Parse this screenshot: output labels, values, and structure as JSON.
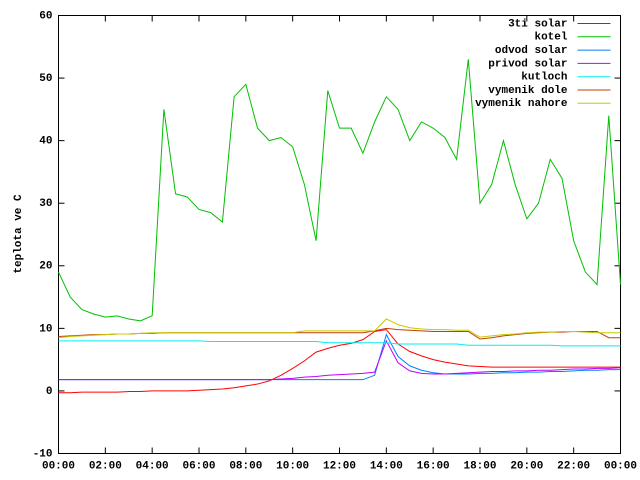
{
  "chart_data": {
    "type": "line",
    "ylabel": "teplota ve C",
    "x": [
      0,
      0.5,
      1,
      1.5,
      2,
      2.5,
      3,
      3.5,
      4,
      4.5,
      5,
      5.5,
      6,
      6.5,
      7,
      7.5,
      8,
      8.5,
      9,
      9.5,
      10,
      10.5,
      11,
      11.5,
      12,
      12.5,
      13,
      13.5,
      14,
      14.5,
      15,
      15.5,
      16,
      16.5,
      17,
      17.5,
      18,
      18.5,
      19,
      19.5,
      20,
      20.5,
      21,
      21.5,
      22,
      22.5,
      23,
      23.5,
      24
    ],
    "xlim": [
      0,
      24
    ],
    "xticks": [
      {
        "value": 0,
        "label": "00:00"
      },
      {
        "value": 2,
        "label": "02:00"
      },
      {
        "value": 4,
        "label": "04:00"
      },
      {
        "value": 6,
        "label": "06:00"
      },
      {
        "value": 8,
        "label": "08:00"
      },
      {
        "value": 10,
        "label": "10:00"
      },
      {
        "value": 12,
        "label": "12:00"
      },
      {
        "value": 14,
        "label": "14:00"
      },
      {
        "value": 16,
        "label": "16:00"
      },
      {
        "value": 18,
        "label": "18:00"
      },
      {
        "value": 20,
        "label": "20:00"
      },
      {
        "value": 22,
        "label": "22:00"
      },
      {
        "value": 24,
        "label": "00:00"
      }
    ],
    "ylim": [
      -10,
      60
    ],
    "yticks": [
      -10,
      0,
      10,
      20,
      30,
      40,
      50,
      60
    ],
    "grid": false,
    "legend": "top right",
    "series": [
      {
        "name": "3ti solar",
        "color": "#ff0000",
        "values": [
          -0.3,
          -0.3,
          -0.2,
          -0.2,
          -0.2,
          -0.2,
          -0.1,
          -0.1,
          0,
          0,
          0,
          0,
          0.1,
          0.2,
          0.3,
          0.5,
          0.8,
          1.1,
          1.6,
          2.5,
          3.6,
          4.8,
          6.2,
          6.8,
          7.3,
          7.6,
          8.2,
          9.5,
          9.8,
          7.5,
          6.3,
          5.6,
          5,
          4.6,
          4.3,
          4,
          3.9,
          3.8,
          3.8,
          3.8,
          3.8,
          3.8,
          3.8,
          3.8,
          3.8,
          3.8,
          3.8,
          3.8,
          3.8
        ]
      },
      {
        "name": "kotel",
        "color": "#00c000",
        "values": [
          19,
          15,
          13,
          12.3,
          11.8,
          12,
          11.5,
          11.2,
          12,
          45,
          31.5,
          31,
          29,
          28.5,
          27,
          47,
          49,
          42,
          40,
          40.5,
          39,
          33,
          24,
          48,
          42,
          42,
          38,
          43,
          47,
          45,
          40,
          43,
          42,
          40.5,
          37,
          53,
          30,
          33,
          40,
          33,
          27.5,
          30,
          37,
          34,
          24,
          19,
          17,
          44,
          17
        ]
      },
      {
        "name": "odvod solar",
        "color": "#0080ff",
        "values": [
          1.8,
          1.8,
          1.8,
          1.8,
          1.8,
          1.8,
          1.8,
          1.8,
          1.8,
          1.8,
          1.8,
          1.8,
          1.8,
          1.8,
          1.8,
          1.8,
          1.8,
          1.8,
          1.8,
          1.8,
          1.8,
          1.8,
          1.8,
          1.8,
          1.8,
          1.8,
          1.8,
          2.5,
          9,
          5.5,
          4,
          3.3,
          2.9,
          2.7,
          2.7,
          2.7,
          2.8,
          2.8,
          2.9,
          2.9,
          3,
          3,
          3.1,
          3.1,
          3.2,
          3.3,
          3.3,
          3.4,
          3.4
        ]
      },
      {
        "name": "privod solar",
        "color": "#c000ff",
        "values": [
          1.8,
          1.8,
          1.8,
          1.8,
          1.8,
          1.8,
          1.8,
          1.8,
          1.8,
          1.8,
          1.8,
          1.8,
          1.8,
          1.8,
          1.8,
          1.8,
          1.8,
          1.8,
          1.8,
          1.9,
          2,
          2.2,
          2.3,
          2.5,
          2.6,
          2.7,
          2.8,
          3,
          8,
          4.5,
          3.2,
          2.8,
          2.7,
          2.7,
          2.8,
          2.9,
          3,
          3.1,
          3.1,
          3.2,
          3.2,
          3.3,
          3.3,
          3.4,
          3.5,
          3.5,
          3.6,
          3.6,
          3.7
        ]
      },
      {
        "name": "kutloch",
        "color": "#00eeee",
        "values": [
          8,
          8,
          8,
          8,
          8,
          8,
          8,
          8,
          8,
          8,
          8,
          8,
          8,
          7.9,
          7.9,
          7.9,
          7.9,
          7.9,
          7.9,
          7.9,
          7.9,
          7.9,
          7.9,
          7.7,
          7.7,
          7.7,
          7.7,
          7.7,
          7.7,
          7.5,
          7.5,
          7.5,
          7.5,
          7.5,
          7.5,
          7.3,
          7.3,
          7.3,
          7.3,
          7.3,
          7.3,
          7.3,
          7.3,
          7.2,
          7.2,
          7.2,
          7.2,
          7.2,
          7.2
        ]
      },
      {
        "name": "vymenik dole",
        "color": "#c04000",
        "values": [
          8.7,
          8.8,
          8.9,
          9,
          9,
          9.1,
          9.1,
          9.2,
          9.2,
          9.3,
          9.3,
          9.3,
          9.3,
          9.3,
          9.3,
          9.3,
          9.3,
          9.3,
          9.3,
          9.3,
          9.3,
          9.3,
          9.3,
          9.3,
          9.3,
          9.3,
          9.3,
          9.6,
          10,
          9.8,
          9.7,
          9.6,
          9.5,
          9.5,
          9.5,
          9.5,
          8.3,
          8.5,
          8.8,
          9,
          9.2,
          9.3,
          9.4,
          9.4,
          9.5,
          9.5,
          9.5,
          8.5,
          8.5
        ]
      },
      {
        "name": "vymenik nahore",
        "color": "#c8c800",
        "values": [
          8.5,
          8.7,
          8.8,
          8.9,
          9,
          9.1,
          9.1,
          9.2,
          9.3,
          9.3,
          9.3,
          9.3,
          9.3,
          9.3,
          9.3,
          9.3,
          9.3,
          9.3,
          9.3,
          9.3,
          9.3,
          9.6,
          9.6,
          9.6,
          9.6,
          9.6,
          9.6,
          9.6,
          11.5,
          10.6,
          10.1,
          9.9,
          9.8,
          9.8,
          9.7,
          9.7,
          8.6,
          8.8,
          9,
          9.1,
          9.3,
          9.4,
          9.4,
          9.5,
          9.5,
          9.4,
          9.3,
          9.3,
          9.3
        ]
      }
    ]
  }
}
